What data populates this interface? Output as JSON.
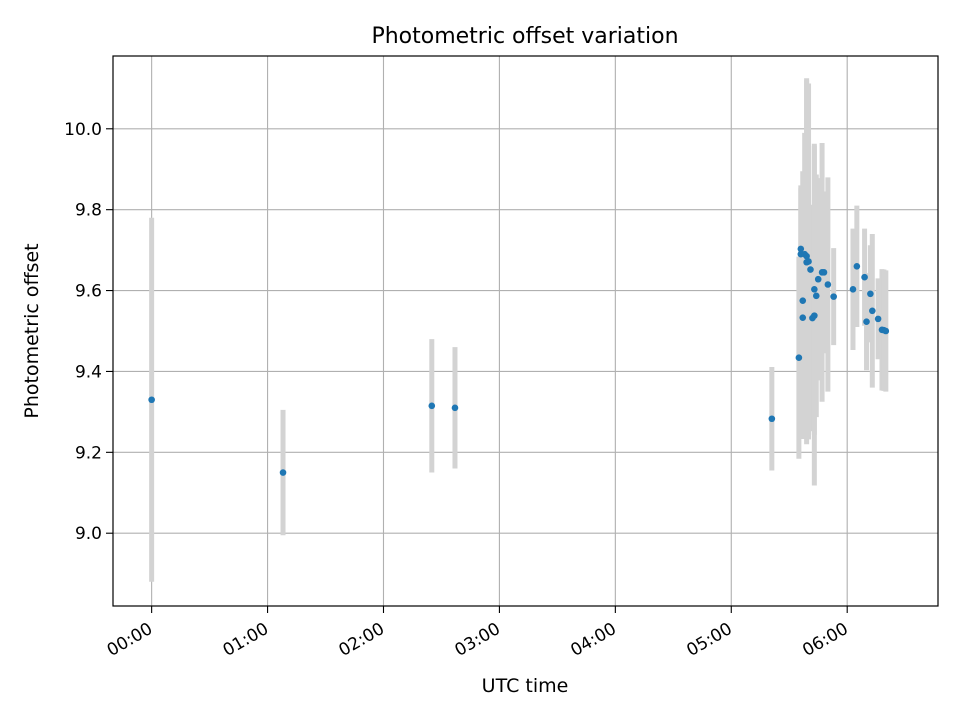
{
  "chart_data": {
    "type": "scatter",
    "title": "Photometric offset variation",
    "xlabel": "UTC time",
    "ylabel": "Photometric offset",
    "x_unit": "UTC time (hours)",
    "xlim": [
      "23:40",
      "06:47"
    ],
    "ylim": [
      8.82,
      10.18
    ],
    "x_ticks": [
      "00:00",
      "01:00",
      "02:00",
      "03:00",
      "04:00",
      "05:00",
      "06:00"
    ],
    "y_ticks": [
      "9.0",
      "9.2",
      "9.4",
      "9.6",
      "9.8",
      "10.0"
    ],
    "grid": true,
    "legend": "none",
    "colors": {
      "point": "#1f77b4",
      "errorbar": "#d3d3d3",
      "grid": "#b0b0b0"
    },
    "points": [
      {
        "t": "00:00",
        "y": 9.33,
        "err": 0.45
      },
      {
        "t": "01:08",
        "y": 9.15,
        "err": 0.155
      },
      {
        "t": "02:25",
        "y": 9.315,
        "err": 0.165
      },
      {
        "t": "02:37",
        "y": 9.31,
        "err": 0.15
      },
      {
        "t": "05:21",
        "y": 9.283,
        "err": 0.128
      },
      {
        "t": "05:35",
        "y": 9.434,
        "err": 0.25
      },
      {
        "t": "05:36",
        "y": 9.703,
        "err": 0.15
      },
      {
        "t": "05:36",
        "y": 9.69,
        "err": 0.17
      },
      {
        "t": "05:37",
        "y": 9.533,
        "err": 0.3
      },
      {
        "t": "05:37",
        "y": 9.575,
        "err": 0.32
      },
      {
        "t": "05:38",
        "y": 9.69,
        "err": 0.3
      },
      {
        "t": "05:39",
        "y": 9.67,
        "err": 0.45
      },
      {
        "t": "05:39",
        "y": 9.685,
        "err": 0.44
      },
      {
        "t": "05:40",
        "y": 9.672,
        "err": 0.44
      },
      {
        "t": "05:41",
        "y": 9.652,
        "err": 0.16
      },
      {
        "t": "05:42",
        "y": 9.532,
        "err": 0.28
      },
      {
        "t": "05:43",
        "y": 9.538,
        "err": 0.42
      },
      {
        "t": "05:43",
        "y": 9.603,
        "err": 0.36
      },
      {
        "t": "05:44",
        "y": 9.587,
        "err": 0.3
      },
      {
        "t": "05:45",
        "y": 9.628,
        "err": 0.25
      },
      {
        "t": "05:47",
        "y": 9.645,
        "err": 0.32
      },
      {
        "t": "05:48",
        "y": 9.645,
        "err": 0.2
      },
      {
        "t": "05:50",
        "y": 9.615,
        "err": 0.265
      },
      {
        "t": "05:53",
        "y": 9.585,
        "err": 0.12
      },
      {
        "t": "06:03",
        "y": 9.603,
        "err": 0.15
      },
      {
        "t": "06:05",
        "y": 9.66,
        "err": 0.15
      },
      {
        "t": "06:09",
        "y": 9.633,
        "err": 0.12
      },
      {
        "t": "06:10",
        "y": 9.523,
        "err": 0.12
      },
      {
        "t": "06:12",
        "y": 9.592,
        "err": 0.12
      },
      {
        "t": "06:13",
        "y": 9.55,
        "err": 0.19
      },
      {
        "t": "06:16",
        "y": 9.53,
        "err": 0.1
      },
      {
        "t": "06:18",
        "y": 9.503,
        "err": 0.15
      },
      {
        "t": "06:19",
        "y": 9.502,
        "err": 0.15
      },
      {
        "t": "06:20",
        "y": 9.5,
        "err": 0.15
      }
    ]
  }
}
